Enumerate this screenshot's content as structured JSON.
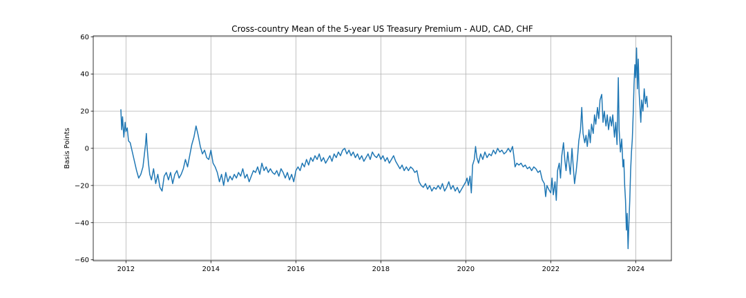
{
  "chart_data": {
    "type": "line",
    "title": "Cross-country Mean of the 5-year US Treasury Premium - AUD, CAD, CHF",
    "xlabel": "",
    "ylabel": "Basis Points",
    "xlim": [
      2011.23,
      2024.84
    ],
    "ylim": [
      -60.5,
      60.5
    ],
    "grid": true,
    "x_ticks": [
      2012,
      2014,
      2016,
      2018,
      2020,
      2022,
      2024
    ],
    "y_ticks": [
      -60,
      -40,
      -20,
      0,
      20,
      40,
      60
    ],
    "line_color": "#1f77b4",
    "series": [
      {
        "points": [
          [
            2011.88,
            21
          ],
          [
            2011.9,
            10
          ],
          [
            2011.92,
            17
          ],
          [
            2011.95,
            6
          ],
          [
            2011.98,
            14
          ],
          [
            2012.0,
            9
          ],
          [
            2012.03,
            11
          ],
          [
            2012.06,
            4
          ],
          [
            2012.1,
            3
          ],
          [
            2012.15,
            -2
          ],
          [
            2012.2,
            -7
          ],
          [
            2012.25,
            -12
          ],
          [
            2012.3,
            -16
          ],
          [
            2012.35,
            -14
          ],
          [
            2012.4,
            -10
          ],
          [
            2012.43,
            -4
          ],
          [
            2012.46,
            2
          ],
          [
            2012.48,
            8
          ],
          [
            2012.5,
            0
          ],
          [
            2012.53,
            -8
          ],
          [
            2012.56,
            -14
          ],
          [
            2012.6,
            -17
          ],
          [
            2012.65,
            -11
          ],
          [
            2012.7,
            -19
          ],
          [
            2012.75,
            -14
          ],
          [
            2012.8,
            -21
          ],
          [
            2012.85,
            -23
          ],
          [
            2012.9,
            -15
          ],
          [
            2012.95,
            -13
          ],
          [
            2013.0,
            -17
          ],
          [
            2013.05,
            -13
          ],
          [
            2013.1,
            -19
          ],
          [
            2013.15,
            -14
          ],
          [
            2013.2,
            -12
          ],
          [
            2013.25,
            -16
          ],
          [
            2013.3,
            -14
          ],
          [
            2013.35,
            -11
          ],
          [
            2013.4,
            -6
          ],
          [
            2013.45,
            -10
          ],
          [
            2013.5,
            -4
          ],
          [
            2013.55,
            2
          ],
          [
            2013.6,
            6
          ],
          [
            2013.65,
            12
          ],
          [
            2013.7,
            7
          ],
          [
            2013.75,
            1
          ],
          [
            2013.8,
            -3
          ],
          [
            2013.85,
            -1
          ],
          [
            2013.9,
            -5
          ],
          [
            2013.95,
            -6
          ],
          [
            2014.0,
            -1
          ],
          [
            2014.05,
            -8
          ],
          [
            2014.1,
            -10
          ],
          [
            2014.15,
            -13
          ],
          [
            2014.2,
            -18
          ],
          [
            2014.25,
            -14
          ],
          [
            2014.3,
            -20
          ],
          [
            2014.35,
            -13
          ],
          [
            2014.4,
            -18
          ],
          [
            2014.45,
            -15
          ],
          [
            2014.5,
            -17
          ],
          [
            2014.55,
            -14
          ],
          [
            2014.6,
            -16
          ],
          [
            2014.65,
            -13
          ],
          [
            2014.7,
            -15
          ],
          [
            2014.75,
            -11
          ],
          [
            2014.8,
            -16
          ],
          [
            2014.85,
            -14
          ],
          [
            2014.9,
            -18
          ],
          [
            2014.95,
            -15
          ],
          [
            2015.0,
            -12
          ],
          [
            2015.05,
            -13
          ],
          [
            2015.1,
            -10
          ],
          [
            2015.15,
            -14
          ],
          [
            2015.2,
            -8
          ],
          [
            2015.25,
            -12
          ],
          [
            2015.3,
            -10
          ],
          [
            2015.35,
            -13
          ],
          [
            2015.4,
            -11
          ],
          [
            2015.45,
            -13
          ],
          [
            2015.5,
            -14
          ],
          [
            2015.55,
            -12
          ],
          [
            2015.6,
            -15
          ],
          [
            2015.65,
            -11
          ],
          [
            2015.7,
            -13
          ],
          [
            2015.75,
            -16
          ],
          [
            2015.8,
            -13
          ],
          [
            2015.85,
            -17
          ],
          [
            2015.9,
            -14
          ],
          [
            2015.95,
            -18
          ],
          [
            2016.0,
            -12
          ],
          [
            2016.05,
            -10
          ],
          [
            2016.1,
            -12
          ],
          [
            2016.15,
            -8
          ],
          [
            2016.2,
            -10
          ],
          [
            2016.25,
            -6
          ],
          [
            2016.3,
            -9
          ],
          [
            2016.35,
            -5
          ],
          [
            2016.4,
            -7
          ],
          [
            2016.45,
            -4
          ],
          [
            2016.5,
            -6
          ],
          [
            2016.55,
            -3
          ],
          [
            2016.6,
            -7
          ],
          [
            2016.65,
            -5
          ],
          [
            2016.7,
            -8
          ],
          [
            2016.75,
            -6
          ],
          [
            2016.8,
            -4
          ],
          [
            2016.85,
            -7
          ],
          [
            2016.9,
            -3
          ],
          [
            2016.95,
            -5
          ],
          [
            2017.0,
            -2
          ],
          [
            2017.05,
            -4
          ],
          [
            2017.1,
            -1
          ],
          [
            2017.15,
            0
          ],
          [
            2017.2,
            -3
          ],
          [
            2017.25,
            -1
          ],
          [
            2017.3,
            -4
          ],
          [
            2017.35,
            -2
          ],
          [
            2017.4,
            -5
          ],
          [
            2017.45,
            -3
          ],
          [
            2017.5,
            -6
          ],
          [
            2017.55,
            -4
          ],
          [
            2017.6,
            -7
          ],
          [
            2017.65,
            -5
          ],
          [
            2017.7,
            -3
          ],
          [
            2017.75,
            -6
          ],
          [
            2017.8,
            -2
          ],
          [
            2017.85,
            -4
          ],
          [
            2017.9,
            -5
          ],
          [
            2017.95,
            -3
          ],
          [
            2018.0,
            -6
          ],
          [
            2018.05,
            -4
          ],
          [
            2018.1,
            -7
          ],
          [
            2018.15,
            -5
          ],
          [
            2018.2,
            -8
          ],
          [
            2018.25,
            -6
          ],
          [
            2018.3,
            -4
          ],
          [
            2018.35,
            -7
          ],
          [
            2018.4,
            -9
          ],
          [
            2018.45,
            -11
          ],
          [
            2018.5,
            -9
          ],
          [
            2018.55,
            -12
          ],
          [
            2018.6,
            -10
          ],
          [
            2018.65,
            -12
          ],
          [
            2018.7,
            -10
          ],
          [
            2018.75,
            -11
          ],
          [
            2018.8,
            -13
          ],
          [
            2018.85,
            -12
          ],
          [
            2018.9,
            -18
          ],
          [
            2018.95,
            -20
          ],
          [
            2019.0,
            -21
          ],
          [
            2019.05,
            -19
          ],
          [
            2019.1,
            -22
          ],
          [
            2019.15,
            -20
          ],
          [
            2019.2,
            -23
          ],
          [
            2019.25,
            -21
          ],
          [
            2019.3,
            -22
          ],
          [
            2019.35,
            -20
          ],
          [
            2019.4,
            -22
          ],
          [
            2019.45,
            -19
          ],
          [
            2019.5,
            -23
          ],
          [
            2019.55,
            -21
          ],
          [
            2019.6,
            -18
          ],
          [
            2019.65,
            -22
          ],
          [
            2019.7,
            -20
          ],
          [
            2019.75,
            -23
          ],
          [
            2019.8,
            -21
          ],
          [
            2019.85,
            -24
          ],
          [
            2019.9,
            -22
          ],
          [
            2019.95,
            -20
          ],
          [
            2020.0,
            -18
          ],
          [
            2020.03,
            -16
          ],
          [
            2020.06,
            -20
          ],
          [
            2020.1,
            -15
          ],
          [
            2020.13,
            -24
          ],
          [
            2020.16,
            -9
          ],
          [
            2020.2,
            -6
          ],
          [
            2020.23,
            1
          ],
          [
            2020.26,
            -5
          ],
          [
            2020.3,
            -8
          ],
          [
            2020.35,
            -3
          ],
          [
            2020.4,
            -6
          ],
          [
            2020.45,
            -2
          ],
          [
            2020.5,
            -5
          ],
          [
            2020.55,
            -3
          ],
          [
            2020.6,
            -4
          ],
          [
            2020.65,
            -1
          ],
          [
            2020.7,
            -3
          ],
          [
            2020.75,
            0
          ],
          [
            2020.8,
            -2
          ],
          [
            2020.85,
            -1
          ],
          [
            2020.9,
            -3
          ],
          [
            2020.95,
            -2
          ],
          [
            2021.0,
            0
          ],
          [
            2021.05,
            -2
          ],
          [
            2021.1,
            1
          ],
          [
            2021.13,
            -4
          ],
          [
            2021.16,
            -10
          ],
          [
            2021.2,
            -8
          ],
          [
            2021.25,
            -9
          ],
          [
            2021.3,
            -8
          ],
          [
            2021.35,
            -10
          ],
          [
            2021.4,
            -9
          ],
          [
            2021.45,
            -11
          ],
          [
            2021.5,
            -10
          ],
          [
            2021.55,
            -12
          ],
          [
            2021.6,
            -10
          ],
          [
            2021.65,
            -11
          ],
          [
            2021.7,
            -13
          ],
          [
            2021.75,
            -12
          ],
          [
            2021.8,
            -17
          ],
          [
            2021.85,
            -19
          ],
          [
            2021.88,
            -26
          ],
          [
            2021.91,
            -20
          ],
          [
            2021.95,
            -22
          ],
          [
            2022.0,
            -24
          ],
          [
            2022.03,
            -16
          ],
          [
            2022.06,
            -25
          ],
          [
            2022.1,
            -18
          ],
          [
            2022.13,
            -28
          ],
          [
            2022.16,
            -12
          ],
          [
            2022.2,
            -8
          ],
          [
            2022.23,
            -16
          ],
          [
            2022.26,
            -4
          ],
          [
            2022.3,
            3
          ],
          [
            2022.33,
            -6
          ],
          [
            2022.36,
            -12
          ],
          [
            2022.4,
            -2
          ],
          [
            2022.43,
            -8
          ],
          [
            2022.46,
            -14
          ],
          [
            2022.5,
            0
          ],
          [
            2022.53,
            -10
          ],
          [
            2022.56,
            -19
          ],
          [
            2022.6,
            -12
          ],
          [
            2022.63,
            -5
          ],
          [
            2022.66,
            4
          ],
          [
            2022.7,
            10
          ],
          [
            2022.73,
            22
          ],
          [
            2022.76,
            8
          ],
          [
            2022.8,
            3
          ],
          [
            2022.83,
            7
          ],
          [
            2022.86,
            1
          ],
          [
            2022.9,
            10
          ],
          [
            2022.93,
            3
          ],
          [
            2022.96,
            13
          ],
          [
            2023.0,
            8
          ],
          [
            2023.03,
            18
          ],
          [
            2023.06,
            13
          ],
          [
            2023.1,
            22
          ],
          [
            2023.13,
            16
          ],
          [
            2023.16,
            26
          ],
          [
            2023.2,
            29
          ],
          [
            2023.23,
            14
          ],
          [
            2023.26,
            20
          ],
          [
            2023.3,
            12
          ],
          [
            2023.33,
            18
          ],
          [
            2023.36,
            10
          ],
          [
            2023.4,
            17
          ],
          [
            2023.43,
            12
          ],
          [
            2023.46,
            18
          ],
          [
            2023.5,
            6
          ],
          [
            2023.53,
            14
          ],
          [
            2023.56,
            2
          ],
          [
            2023.59,
            38
          ],
          [
            2023.61,
            10
          ],
          [
            2023.64,
            -2
          ],
          [
            2023.67,
            5
          ],
          [
            2023.7,
            -10
          ],
          [
            2023.72,
            -6
          ],
          [
            2023.74,
            -20
          ],
          [
            2023.76,
            -28
          ],
          [
            2023.78,
            -44
          ],
          [
            2023.8,
            -35
          ],
          [
            2023.82,
            -54
          ],
          [
            2023.84,
            -40
          ],
          [
            2023.86,
            -28
          ],
          [
            2023.88,
            -12
          ],
          [
            2023.9,
            -2
          ],
          [
            2023.92,
            5
          ],
          [
            2023.94,
            18
          ],
          [
            2023.96,
            34
          ],
          [
            2023.98,
            45
          ],
          [
            2024.0,
            38
          ],
          [
            2024.02,
            54
          ],
          [
            2024.04,
            32
          ],
          [
            2024.06,
            48
          ],
          [
            2024.08,
            30
          ],
          [
            2024.1,
            22
          ],
          [
            2024.12,
            14
          ],
          [
            2024.14,
            26
          ],
          [
            2024.17,
            20
          ],
          [
            2024.2,
            32
          ],
          [
            2024.23,
            24
          ],
          [
            2024.26,
            28
          ],
          [
            2024.28,
            22
          ]
        ]
      }
    ]
  }
}
